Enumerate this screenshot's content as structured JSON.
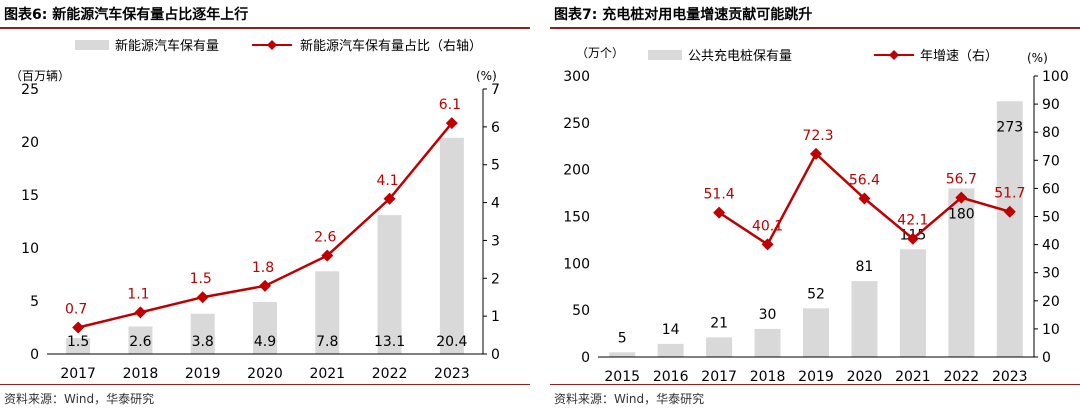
{
  "chart_data": [
    {
      "id": "left",
      "type": "bar",
      "title": "图表6:  新能源汽车保有量占比逐年上行",
      "source": "资料来源：Wind，华泰研究",
      "left_unit": "（百万辆）",
      "right_unit": "(%)",
      "categories": [
        "2017",
        "2018",
        "2019",
        "2020",
        "2021",
        "2022",
        "2023"
      ],
      "bar_series": {
        "name": "新能源汽车保有量",
        "values": [
          1.5,
          2.6,
          3.8,
          4.9,
          7.8,
          13.1,
          20.4
        ],
        "labels": [
          "1.5",
          "2.6",
          "3.8",
          "4.9",
          "7.8",
          "13.1",
          "20.4"
        ]
      },
      "line_series": {
        "name": "新能源汽车保有量占比（右轴）",
        "values": [
          0.7,
          1.1,
          1.5,
          1.8,
          2.6,
          4.1,
          6.1
        ],
        "labels": [
          "0.7",
          "1.1",
          "1.5",
          "1.8",
          "2.6",
          "4.1",
          "6.1"
        ]
      },
      "ylim_left": [
        0,
        25
      ],
      "yticks_left": [
        "0",
        "5",
        "10",
        "15",
        "20",
        "25"
      ],
      "ylim_right": [
        0,
        7
      ],
      "yticks_right": [
        "0",
        "1",
        "2",
        "3",
        "4",
        "5",
        "6",
        "7"
      ],
      "colors": {
        "bar": "#d9d9d9",
        "line": "#c00000",
        "line_label": "#c00000"
      },
      "legend_position": "top"
    },
    {
      "id": "right",
      "type": "bar",
      "title": "图表7:  充电桩对用电量增速贡献可能跳升",
      "source": "资料来源：Wind，华泰研究",
      "left_unit": "（万个）",
      "right_unit": "(%)",
      "categories": [
        "2015",
        "2016",
        "2017",
        "2018",
        "2019",
        "2020",
        "2021",
        "2022",
        "2023"
      ],
      "bar_series": {
        "name": "公共充电桩保有量",
        "values": [
          5,
          14,
          21,
          30,
          52,
          81,
          115,
          180,
          273
        ],
        "labels": [
          "5",
          "14",
          "21",
          "30",
          "52",
          "81",
          "115",
          "180",
          "273"
        ]
      },
      "line_series": {
        "name": "年增速（右）",
        "values": [
          null,
          null,
          51.4,
          40.1,
          72.3,
          56.4,
          42.1,
          56.7,
          51.7
        ],
        "labels": [
          "",
          "",
          "51.4",
          "40.1",
          "72.3",
          "56.4",
          "42.1",
          "56.7",
          "51.7"
        ]
      },
      "ylim_left": [
        0,
        300
      ],
      "yticks_left": [
        "0",
        "50",
        "100",
        "150",
        "200",
        "250",
        "300"
      ],
      "ylim_right": [
        0,
        100
      ],
      "yticks_right": [
        "0",
        "10",
        "20",
        "30",
        "40",
        "50",
        "60",
        "70",
        "80",
        "90",
        "100"
      ],
      "colors": {
        "bar": "#d9d9d9",
        "line": "#c00000",
        "line_label": "#c00000"
      },
      "legend_position": "top"
    }
  ]
}
